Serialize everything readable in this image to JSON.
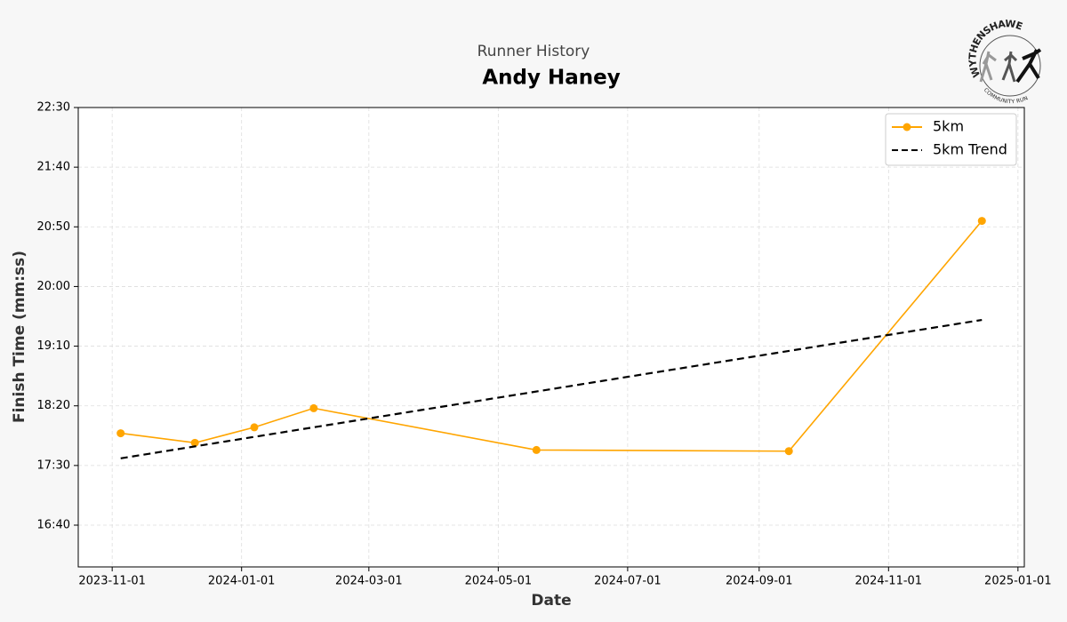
{
  "chart_data": {
    "type": "line",
    "subtitle": "Runner History",
    "title": "Andy Haney",
    "xlabel": "Date",
    "ylabel": "Finish Time (mm:ss)",
    "xlim": [
      "2023-10-16",
      "2025-01-04"
    ],
    "xticks": [
      "2023-11-01",
      "2024-01-01",
      "2024-03-01",
      "2024-05-01",
      "2024-07-01",
      "2024-09-01",
      "2024-11-01",
      "2025-01-01"
    ],
    "ylim": [
      965,
      1350
    ],
    "yticks": [
      {
        "value": 1000,
        "label": "16:40"
      },
      {
        "value": 1050,
        "label": "17:30"
      },
      {
        "value": 1100,
        "label": "18:20"
      },
      {
        "value": 1150,
        "label": "19:10"
      },
      {
        "value": 1200,
        "label": "20:00"
      },
      {
        "value": 1250,
        "label": "20:50"
      },
      {
        "value": 1300,
        "label": "21:40"
      },
      {
        "value": 1350,
        "label": "22:30"
      }
    ],
    "grid": true,
    "legend": "upper right",
    "series": [
      {
        "name": "5km",
        "color": "#ffa500",
        "marker": true,
        "dashed": false,
        "x": [
          "2023-11-05",
          "2023-12-10",
          "2024-01-07",
          "2024-02-04",
          "2024-05-19",
          "2024-09-15",
          "2024-12-15"
        ],
        "values": [
          1077,
          1069,
          1082,
          1098,
          1063,
          1062,
          1255
        ]
      },
      {
        "name": "5km Trend",
        "color": "#000000",
        "marker": false,
        "dashed": true,
        "x": [
          "2023-11-05",
          "2024-12-15"
        ],
        "values": [
          1056,
          1172
        ]
      }
    ]
  },
  "logo": {
    "top": "WYTHENSHAWE",
    "bottom": "COMMUNITY RUN"
  }
}
